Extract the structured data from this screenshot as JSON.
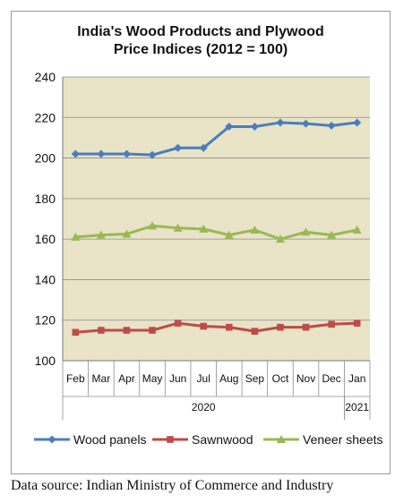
{
  "title_line1": "India's Wood Products and Plywood",
  "title_line2": "Price Indices (2012 = 100)",
  "source": "Data source: Indian Ministry of Commerce and Industry",
  "chart_data": {
    "type": "line",
    "title": "India's Wood Products and Plywood Price Indices (2012 = 100)",
    "categories": [
      "Feb",
      "Mar",
      "Apr",
      "May",
      "Jun",
      "Jul",
      "Aug",
      "Sep",
      "Oct",
      "Nov",
      "Dec",
      "Jan"
    ],
    "year_groups": [
      {
        "label": "2020",
        "start": 0,
        "end": 10
      },
      {
        "label": "2021",
        "start": 11,
        "end": 11
      }
    ],
    "ylim": [
      100,
      240
    ],
    "yticks": [
      100,
      120,
      140,
      160,
      180,
      200,
      220,
      240
    ],
    "grid": true,
    "legend": "bottom",
    "plot_background": "#e9e3c7",
    "series": [
      {
        "name": "Wood panels",
        "color": "#4a7ebb",
        "marker": "diamond",
        "values": [
          202,
          202,
          202,
          201.5,
          205,
          205,
          215.5,
          215.5,
          217.5,
          217,
          216,
          217.5
        ]
      },
      {
        "name": "Sawnwood",
        "color": "#be4b48",
        "marker": "square",
        "values": [
          114,
          115,
          115,
          115,
          118.5,
          117,
          116.5,
          114.5,
          116.5,
          116.5,
          118,
          118.5
        ]
      },
      {
        "name": "Veneer sheets",
        "color": "#98b954",
        "marker": "triangle",
        "values": [
          161,
          162,
          162.5,
          166.5,
          165.5,
          165,
          162,
          164.5,
          160,
          163.5,
          162,
          164.5
        ]
      }
    ]
  }
}
